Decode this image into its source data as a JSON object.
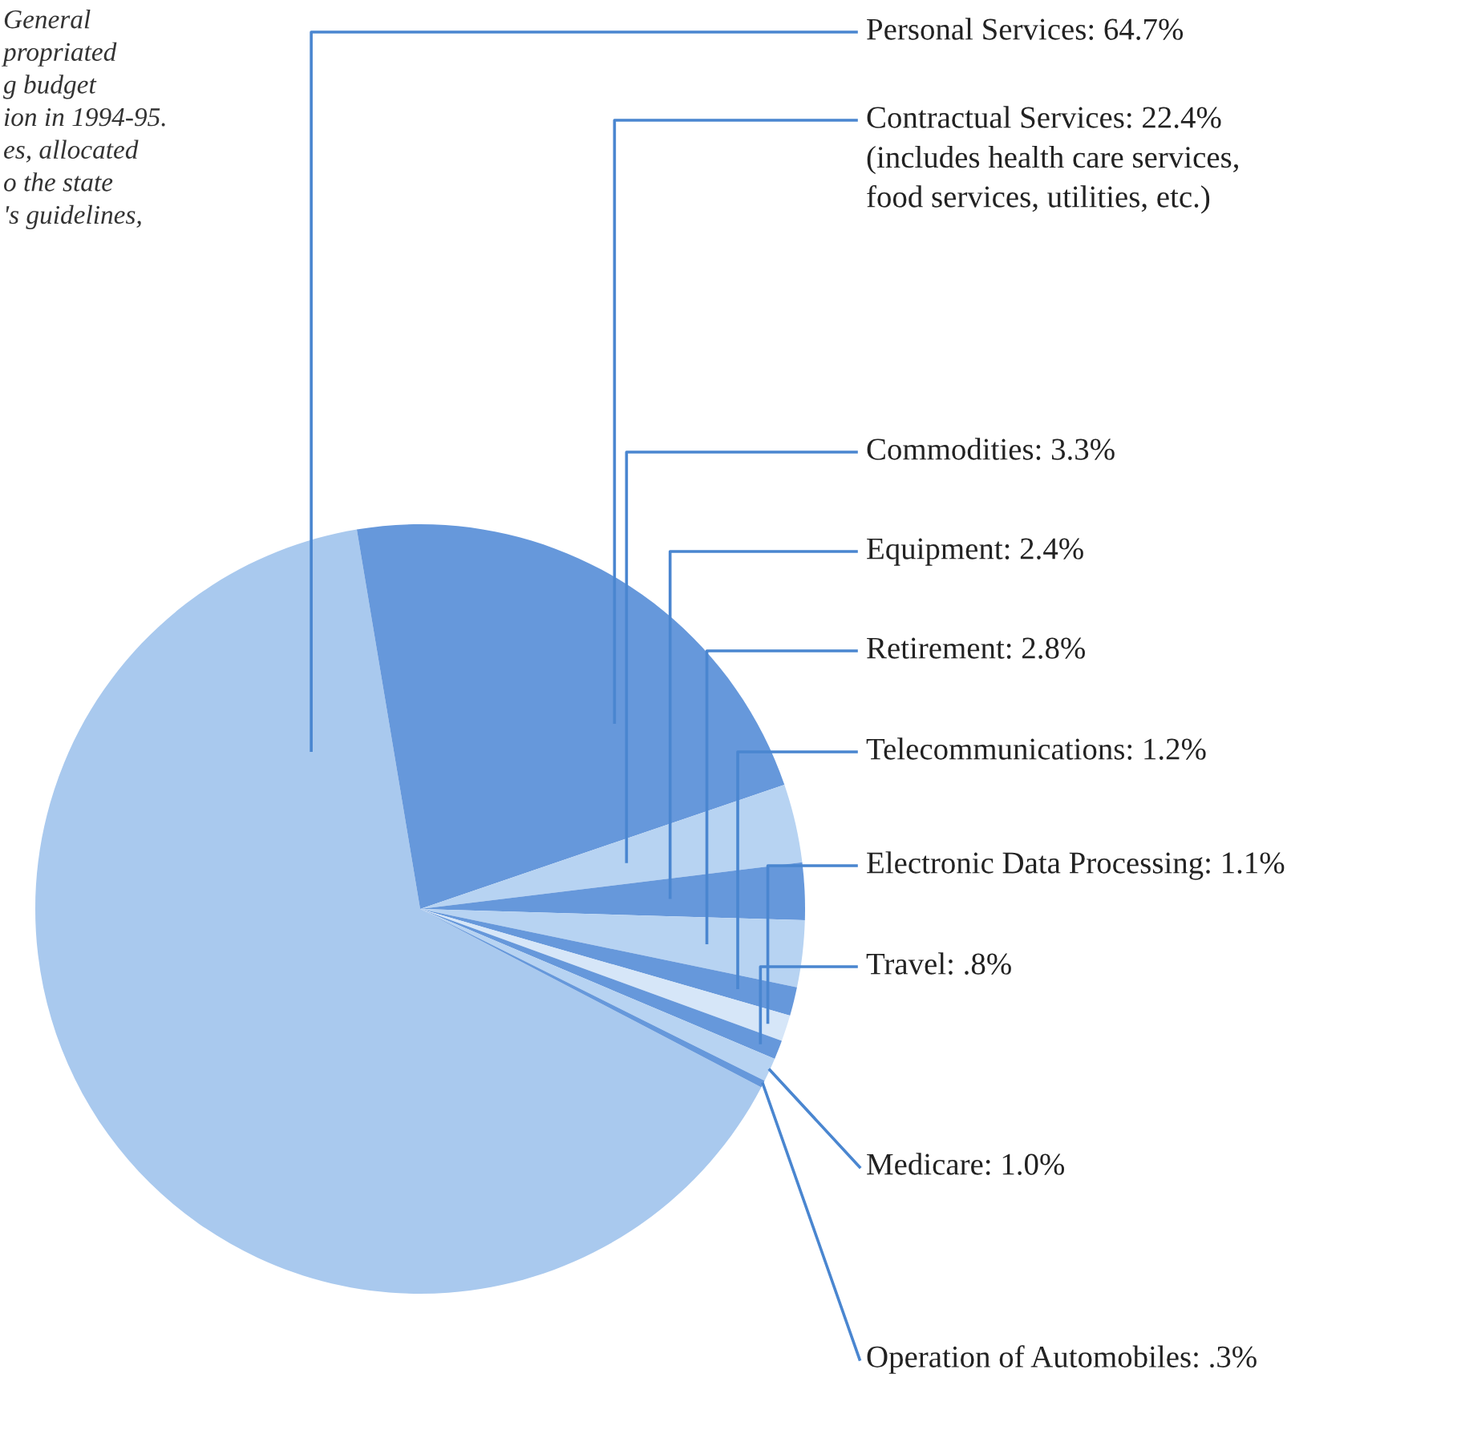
{
  "chart_data": {
    "type": "pie",
    "categories": [
      "Personal Services",
      "Contractual Services",
      "Commodities",
      "Equipment",
      "Retirement",
      "Telecommunications",
      "Electronic Data Processing",
      "Travel",
      "Medicare",
      "Operation of Automobiles"
    ],
    "values": [
      64.7,
      22.4,
      3.3,
      2.4,
      2.8,
      1.2,
      1.1,
      0.8,
      1.0,
      0.3
    ],
    "value_labels": [
      "64.7%",
      "22.4%",
      "3.3%",
      "2.4%",
      "2.8%",
      "1.2%",
      "1.1%",
      ".8%",
      "1.0%",
      ".3%"
    ],
    "colors": [
      "#a9c9ee",
      "#6698db",
      "#b7d3f2",
      "#6698db",
      "#b7d3f2",
      "#6698db",
      "#d6e6f8",
      "#6698db",
      "#b7d3f2",
      "#6698db"
    ],
    "annotations": [
      "General\npropriated\ng budget\nion in 1994-95.\nes, allocated\no the state\n's guidelines,",
      "(includes health care services,\nfood services, utilities, etc.)"
    ]
  }
}
